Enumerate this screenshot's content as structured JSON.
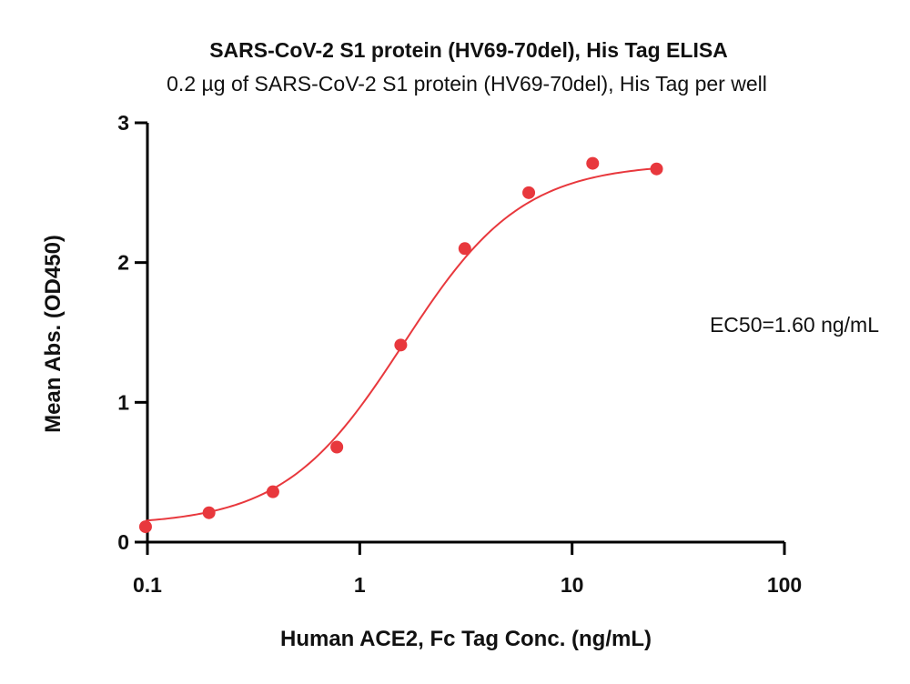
{
  "chart_data": {
    "type": "scatter",
    "title": "SARS-CoV-2 S1 protein (HV69-70del), His Tag ELISA",
    "subtitle": "0.2 µg of SARS-CoV-2 S1 protein (HV69-70del), His Tag per well",
    "xlabel": "Human ACE2, Fc Tag Conc. (ng/mL)",
    "ylabel": "Mean Abs. (OD450)",
    "x_scale": "log",
    "xlim": [
      0.1,
      100
    ],
    "ylim": [
      0,
      3
    ],
    "x_ticks": [
      "0.1",
      "1",
      "10",
      "100"
    ],
    "x_tick_values": [
      0.1,
      1,
      10,
      100
    ],
    "y_ticks": [
      "0",
      "1",
      "2",
      "3"
    ],
    "y_tick_values": [
      0,
      1,
      2,
      3
    ],
    "grid": false,
    "color": "#e8383d",
    "series": [
      {
        "x": [
          0.098,
          0.195,
          0.39,
          0.78,
          1.56,
          3.125,
          6.25,
          12.5,
          25
        ],
        "y": [
          0.11,
          0.21,
          0.36,
          0.68,
          1.41,
          2.1,
          2.5,
          2.71,
          2.67
        ]
      }
    ],
    "fit": {
      "model": "4PL",
      "bottom": 0.12,
      "top": 2.71,
      "ec50": 1.6,
      "hill": 1.55,
      "x_range": [
        0.098,
        25
      ]
    },
    "annotation": "EC50=1.60 ng/mL"
  }
}
